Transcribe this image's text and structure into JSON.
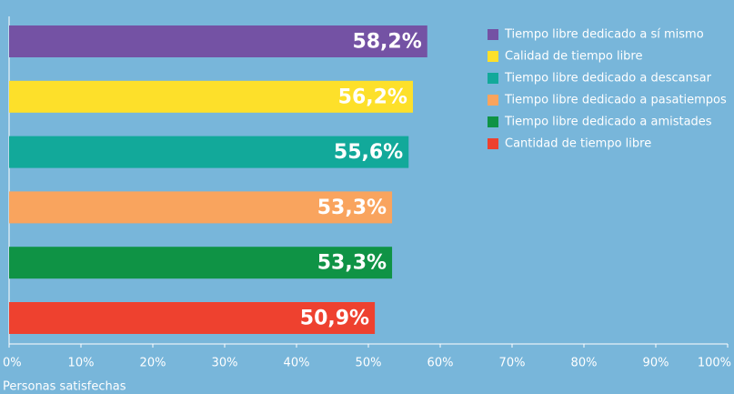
{
  "chart_data": {
    "type": "bar",
    "orientation": "horizontal",
    "categories": [
      "Tiempo libre dedicado a sí mismo",
      "Calidad de tiempo libre",
      "Tiempo libre dedicado a descansar",
      "Tiempo libre dedicado a pasatiempos",
      "Tiempo libre dedicado a amistades",
      "Cantidad de tiempo libre"
    ],
    "values": [
      58.2,
      56.2,
      55.6,
      53.3,
      53.3,
      50.9
    ],
    "value_labels": [
      "58,2%",
      "56,2%",
      "55,6%",
      "53,3%",
      "53,3%",
      "50,9%"
    ],
    "colors": [
      "#7452a4",
      "#fde02a",
      "#12a99a",
      "#f9a45e",
      "#0f9345",
      "#ee412f"
    ],
    "x_label": "Personas satisfechas",
    "xlim": [
      0,
      100
    ],
    "xticks": [
      {
        "value": 0,
        "label": "0%"
      },
      {
        "value": 10,
        "label": "10%"
      },
      {
        "value": 20,
        "label": "20%"
      },
      {
        "value": 30,
        "label": "30%"
      },
      {
        "value": 40,
        "label": "40%"
      },
      {
        "value": 50,
        "label": "50%"
      },
      {
        "value": 60,
        "label": "60%"
      },
      {
        "value": 70,
        "label": "70%"
      },
      {
        "value": 80,
        "label": "80%"
      },
      {
        "value": 90,
        "label": "90%"
      },
      {
        "value": 100,
        "label": "100%"
      }
    ],
    "legend": "top-right"
  }
}
